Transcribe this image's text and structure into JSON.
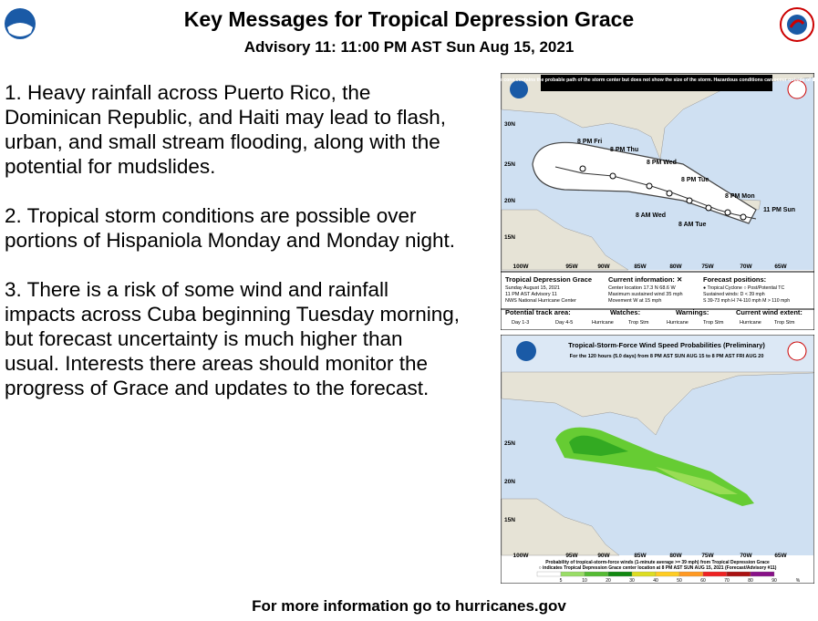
{
  "header": {
    "title": "Key Messages for Tropical Depression Grace",
    "subtitle": "Advisory 11:  11:00 PM AST Sun Aug 15, 2021"
  },
  "messages": [
    "1. Heavy rainfall across Puerto Rico, the Dominican Republic, and Haiti may lead to flash, urban, and small stream flooding, along with the potential for mudslides.",
    "2. Tropical storm conditions are possible over portions of Hispaniola Monday and Monday night.",
    "3. There is a risk of some wind and rainfall impacts across Cuba beginning Tuesday morning, but forecast uncertainty is much higher than usual. Interests there areas should monitor the progress of Grace and updates to the forecast."
  ],
  "footer": "For more information go to hurricanes.gov",
  "cone_map": {
    "note": "Note: The cone contains the probable path of the storm center but does not show the size of the storm. Hazardous conditions can occur outside of the cone.",
    "lat_labels": [
      "30N",
      "25N",
      "20N",
      "15N"
    ],
    "lon_labels": [
      "100W",
      "95W",
      "90W",
      "85W",
      "80W",
      "75W",
      "70W",
      "65W"
    ],
    "track_labels": [
      "8 PM Fri",
      "8 PM Thu",
      "8 PM Wed",
      "8 PM Tue",
      "8 PM Mon",
      "11 PM Sun",
      "8 AM Wed",
      "8 AM Tue"
    ],
    "storm_name": "Tropical Depression Grace",
    "storm_lines": [
      "Sunday August 15, 2021",
      "11 PM AST Advisory 11",
      "NWS National Hurricane Center"
    ],
    "current_title": "Current information: ✕",
    "current_lines": [
      "Center location 17.3 N 68.6 W",
      "Maximum sustained wind 35 mph",
      "Movement W at 15 mph"
    ],
    "forecast_title": "Forecast positions:",
    "forecast_lines": [
      "● Tropical Cyclone   ○ Post/Potential TC",
      "Sustained winds:          D < 39 mph",
      "S 39-73 mph   H 74-110 mph   M > 110 mph"
    ],
    "legend": [
      "Potential track area:",
      "Day 1-3",
      "Day 4-5",
      "Watches:",
      "Hurricane",
      "Trop Stm",
      "Warnings:",
      "Hurricane",
      "Trop Stm",
      "Current wind extent:",
      "Hurricane",
      "Trop Stm"
    ]
  },
  "prob_map": {
    "title": "Tropical-Storm-Force Wind Speed Probabilities (Preliminary)",
    "subtitle": "For the 120 hours (5.0 days) from 8 PM AST SUN AUG 15 to 8 PM AST FRI AUG 20",
    "lat_labels": [
      "25N",
      "20N",
      "15N"
    ],
    "lon_labels": [
      "100W",
      "95W",
      "90W",
      "85W",
      "80W",
      "75W",
      "70W",
      "65W"
    ],
    "caption": [
      "Probability of tropical-storm-force winds (1-minute average >= 39 mph) from Tropical Depression Grace",
      "○ indicates Tropical Depression Grace center location at 8 PM AST SUN AUG 15, 2021 (Forecast/Advisory #11)"
    ],
    "scale": [
      "5",
      "10",
      "20",
      "30",
      "40",
      "50",
      "60",
      "70",
      "80",
      "90",
      "%"
    ]
  }
}
